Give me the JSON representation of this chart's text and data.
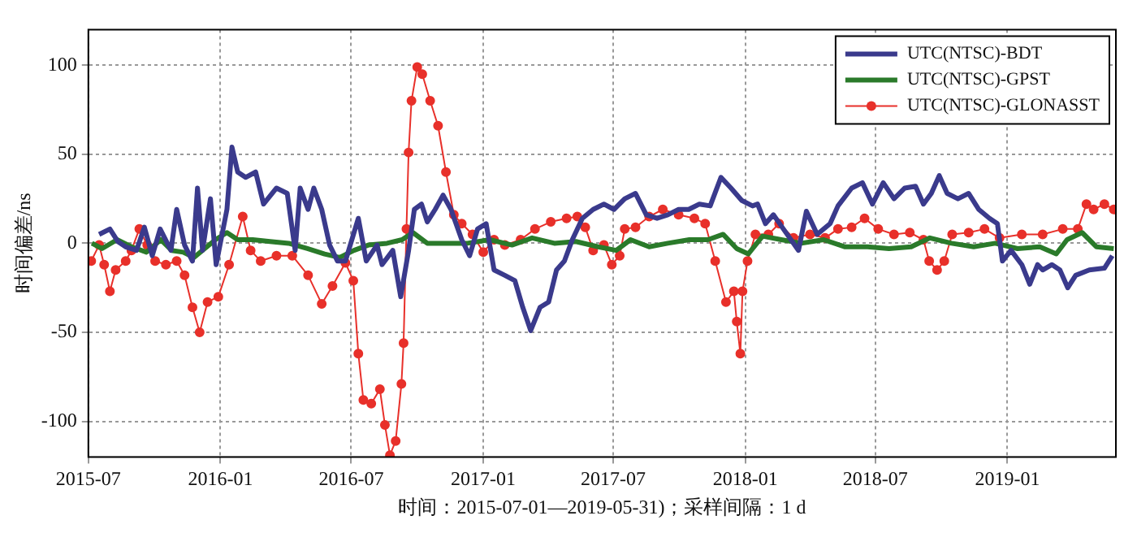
{
  "chart_data": {
    "type": "line",
    "xlabel": "时间：2015-07-01—2019-05-31)；采样间隔：1 d",
    "ylabel": "时间偏差/ns",
    "xlim": [
      "2015-07-01",
      "2019-06-01"
    ],
    "xticks": [
      "2015-07",
      "2016-01",
      "2016-07",
      "2017-01",
      "2017-07",
      "2018-01",
      "2018-07",
      "2019-01"
    ],
    "ylim": [
      -120,
      120
    ],
    "yticks": [
      -100,
      -50,
      0,
      50,
      100
    ],
    "grid": true,
    "legend": "top right",
    "series": [
      {
        "name": "UTC(NTSC)-BDT",
        "color": "#3a3a8c",
        "marker": "none",
        "x": [
          "2015-07-16",
          "2015-07-31",
          "2015-08-11",
          "2015-08-22",
          "2015-09-06",
          "2015-09-17",
          "2015-09-28",
          "2015-10-09",
          "2015-10-24",
          "2015-11-01",
          "2015-11-12",
          "2015-11-23",
          "2015-11-30",
          "2015-12-07",
          "2015-12-18",
          "2015-12-26",
          "2016-01-10",
          "2016-01-17",
          "2016-01-25",
          "2016-02-05",
          "2016-02-19",
          "2016-03-01",
          "2016-03-19",
          "2016-04-03",
          "2016-04-14",
          "2016-04-21",
          "2016-05-02",
          "2016-05-10",
          "2016-05-21",
          "2016-06-01",
          "2016-06-12",
          "2016-06-23",
          "2016-07-11",
          "2016-07-22",
          "2016-08-06",
          "2016-08-13",
          "2016-08-28",
          "2016-09-08",
          "2016-09-19",
          "2016-09-27",
          "2016-10-07",
          "2016-10-15",
          "2016-10-26",
          "2016-11-06",
          "2016-11-17",
          "2016-12-02",
          "2016-12-13",
          "2016-12-24",
          "2017-01-05",
          "2017-01-16",
          "2017-01-31",
          "2017-02-14",
          "2017-02-25",
          "2017-03-08",
          "2017-03-21",
          "2017-04-02",
          "2017-04-13",
          "2017-04-24",
          "2017-05-05",
          "2017-05-19",
          "2017-06-03",
          "2017-06-18",
          "2017-07-02",
          "2017-07-17",
          "2017-08-01",
          "2017-08-16",
          "2017-08-31",
          "2017-09-15",
          "2017-09-30",
          "2017-10-14",
          "2017-10-29",
          "2017-11-13",
          "2017-11-28",
          "2017-12-12",
          "2017-12-27",
          "2018-01-11",
          "2018-01-18",
          "2018-01-29",
          "2018-02-09",
          "2018-02-23",
          "2018-03-16",
          "2018-03-27",
          "2018-04-11",
          "2018-04-29",
          "2018-05-10",
          "2018-05-29",
          "2018-06-13",
          "2018-06-27",
          "2018-07-12",
          "2018-07-27",
          "2018-08-11",
          "2018-08-26",
          "2018-09-06",
          "2018-09-17",
          "2018-09-28",
          "2018-10-09",
          "2018-10-24",
          "2018-11-08",
          "2018-11-22",
          "2018-12-07",
          "2018-12-18",
          "2018-12-25",
          "2019-01-06",
          "2019-01-21",
          "2019-02-01",
          "2019-02-12",
          "2019-02-19",
          "2019-03-04",
          "2019-03-15",
          "2019-03-26",
          "2019-04-06",
          "2019-04-25",
          "2019-05-16",
          "2019-05-27"
        ],
        "values": [
          5,
          8,
          1,
          -2,
          -4,
          9,
          -7,
          8,
          -4,
          19,
          -1,
          -10,
          31,
          -4,
          25,
          -12,
          19,
          54,
          40,
          37,
          40,
          22,
          31,
          28,
          -4,
          31,
          19,
          31,
          19,
          -1,
          -10,
          -10,
          14,
          -10,
          -1,
          -12,
          -4,
          -30,
          -4,
          19,
          22,
          12,
          19,
          27,
          19,
          2,
          -7,
          8,
          11,
          -15,
          -18,
          -21,
          -36,
          -49,
          -36,
          -33,
          -15,
          -10,
          2,
          14,
          19,
          22,
          19,
          25,
          28,
          16,
          14,
          16,
          19,
          19,
          22,
          21,
          37,
          31,
          24,
          21,
          22,
          11,
          16,
          8,
          -4,
          18,
          5,
          11,
          21,
          31,
          34,
          22,
          34,
          25,
          31,
          32,
          22,
          28,
          38,
          28,
          25,
          28,
          19,
          14,
          11,
          -10,
          -4,
          -12,
          -23,
          -12,
          -15,
          -12,
          -15,
          -25,
          -18,
          -15,
          -14,
          -7
        ]
      },
      {
        "name": "UTC(NTSC)-GPST",
        "color": "#2a7a2a",
        "marker": "none",
        "x": [
          "2015-07-06",
          "2015-07-20",
          "2015-08-10",
          "2015-08-30",
          "2015-09-20",
          "2015-10-10",
          "2015-10-25",
          "2015-11-10",
          "2015-11-25",
          "2015-12-10",
          "2015-12-25",
          "2016-01-10",
          "2016-01-25",
          "2016-02-15",
          "2016-03-10",
          "2016-04-05",
          "2016-05-01",
          "2016-05-25",
          "2016-06-15",
          "2016-07-05",
          "2016-07-25",
          "2016-08-20",
          "2016-09-10",
          "2016-09-25",
          "2016-10-15",
          "2016-11-10",
          "2016-12-10",
          "2017-01-10",
          "2017-02-10",
          "2017-03-10",
          "2017-04-10",
          "2017-05-10",
          "2017-06-10",
          "2017-07-05",
          "2017-07-25",
          "2017-08-20",
          "2017-09-15",
          "2017-10-15",
          "2017-11-10",
          "2017-12-01",
          "2017-12-20",
          "2018-01-05",
          "2018-01-25",
          "2018-02-20",
          "2018-03-20",
          "2018-04-20",
          "2018-05-20",
          "2018-06-20",
          "2018-07-20",
          "2018-08-20",
          "2018-09-15",
          "2018-10-15",
          "2018-11-15",
          "2018-12-15",
          "2019-01-15",
          "2019-02-15",
          "2019-03-10",
          "2019-03-25",
          "2019-04-15",
          "2019-05-05",
          "2019-05-29"
        ],
        "values": [
          0,
          -3,
          2,
          -2,
          -5,
          2,
          -4,
          -5,
          -8,
          -3,
          2,
          6,
          2,
          2,
          1,
          0,
          -3,
          -6,
          -8,
          -4,
          -1,
          0,
          2,
          6,
          0,
          0,
          0,
          2,
          -1,
          3,
          0,
          1,
          -2,
          -4,
          2,
          -2,
          0,
          2,
          2,
          5,
          -3,
          -6,
          4,
          2,
          0,
          2,
          -2,
          -2,
          -3,
          -2,
          3,
          0,
          -2,
          0,
          -3,
          -2,
          -6,
          2,
          6,
          -2,
          -3
        ]
      },
      {
        "name": "UTC(NTSC)-GLONASST",
        "color": "#e8302a",
        "marker": "circle",
        "x": [
          "2015-07-05",
          "2015-07-16",
          "2015-07-23",
          "2015-07-31",
          "2015-08-08",
          "2015-08-22",
          "2015-08-30",
          "2015-09-10",
          "2015-09-21",
          "2015-10-02",
          "2015-10-17",
          "2015-11-01",
          "2015-11-12",
          "2015-11-23",
          "2015-12-03",
          "2015-12-14",
          "2015-12-29",
          "2016-01-13",
          "2016-02-01",
          "2016-02-12",
          "2016-02-26",
          "2016-03-19",
          "2016-04-10",
          "2016-05-02",
          "2016-05-21",
          "2016-06-05",
          "2016-06-23",
          "2016-07-04",
          "2016-07-11",
          "2016-07-18",
          "2016-07-29",
          "2016-08-10",
          "2016-08-17",
          "2016-08-24",
          "2016-09-01",
          "2016-09-09",
          "2016-09-12",
          "2016-09-16",
          "2016-09-19",
          "2016-09-23",
          "2016-10-01",
          "2016-10-08",
          "2016-10-19",
          "2016-10-30",
          "2016-11-10",
          "2016-11-21",
          "2016-12-02",
          "2016-12-17",
          "2017-01-01",
          "2017-01-16",
          "2017-01-31",
          "2017-02-22",
          "2017-03-14",
          "2017-04-05",
          "2017-04-27",
          "2017-05-12",
          "2017-05-23",
          "2017-06-03",
          "2017-06-18",
          "2017-06-29",
          "2017-07-10",
          "2017-07-17",
          "2017-08-01",
          "2017-08-20",
          "2017-09-08",
          "2017-09-30",
          "2017-10-22",
          "2017-11-06",
          "2017-11-20",
          "2017-12-05",
          "2017-12-16",
          "2017-12-20",
          "2017-12-25",
          "2017-12-28",
          "2018-01-04",
          "2018-01-15",
          "2018-02-02",
          "2018-02-17",
          "2018-03-09",
          "2018-04-01",
          "2018-04-22",
          "2018-05-10",
          "2018-05-29",
          "2018-06-16",
          "2018-07-05",
          "2018-07-27",
          "2018-08-18",
          "2018-09-06",
          "2018-09-14",
          "2018-09-25",
          "2018-10-05",
          "2018-10-16",
          "2018-11-08",
          "2018-11-30",
          "2018-12-21",
          "2019-01-21",
          "2019-02-19",
          "2019-03-19",
          "2019-04-09",
          "2019-04-21",
          "2019-05-01",
          "2019-05-16",
          "2019-05-29"
        ],
        "values": [
          -10,
          -1,
          -12,
          -27,
          -15,
          -10,
          -4,
          8,
          -1,
          -10,
          -12,
          -10,
          -18,
          -36,
          -50,
          -33,
          -30,
          -12,
          15,
          -4,
          -10,
          -7,
          -7,
          -18,
          -34,
          -24,
          -11,
          -21,
          -62,
          -88,
          -90,
          -82,
          -102,
          -119,
          -111,
          -79,
          -56,
          8,
          51,
          80,
          99,
          95,
          80,
          66,
          40,
          16,
          11,
          5,
          -5,
          2,
          -1,
          2,
          8,
          12,
          14,
          15,
          9,
          -4,
          -1,
          -12,
          -7,
          8,
          9,
          15,
          19,
          16,
          14,
          11,
          -10,
          -33,
          -27,
          -44,
          -62,
          -27,
          -10,
          5,
          5,
          11,
          3,
          5,
          3,
          8,
          9,
          14,
          8,
          5,
          6,
          2,
          -10,
          -15,
          -10,
          5,
          6,
          8,
          3,
          5,
          5,
          8,
          8,
          22,
          19,
          22,
          19
        ]
      }
    ]
  }
}
